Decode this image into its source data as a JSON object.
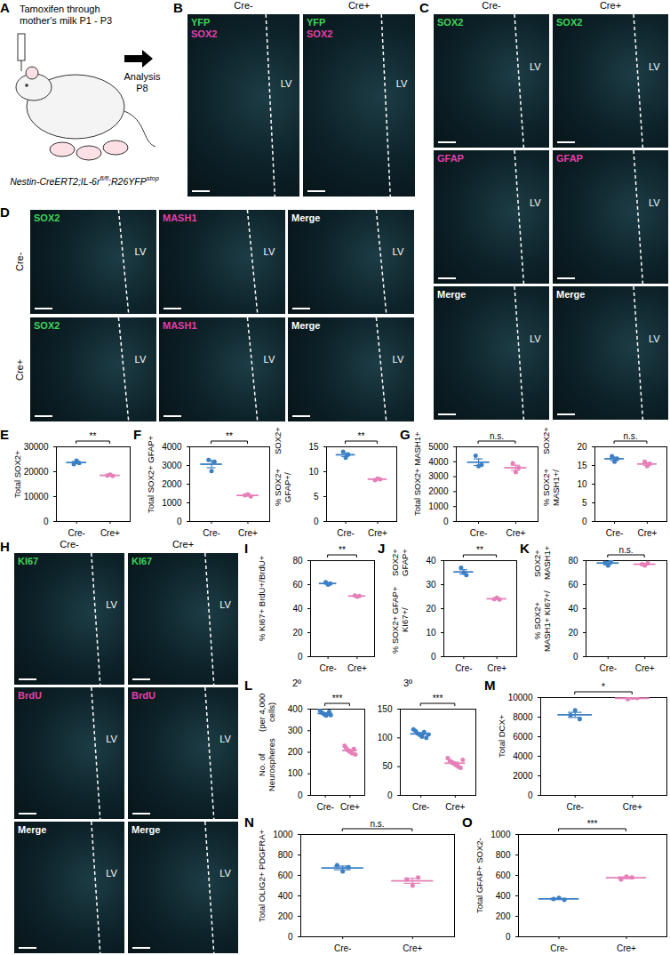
{
  "figure": {
    "panel_A": {
      "label": "A",
      "caption": [
        "Tamoxifen through",
        "mother's milk P1 - P3"
      ],
      "outcome": [
        "Analysis",
        "P8"
      ],
      "genotype": [
        {
          "text": "Nestin-CreERT2;IL-6r"
        },
        {
          "text": "fl/fl",
          "sup": true
        },
        {
          "text": ";R26YFP"
        },
        {
          "text": "stop",
          "sup": true
        }
      ]
    },
    "panel_B": {
      "label": "B",
      "columns": [
        "Cre-",
        "Cre+"
      ],
      "channels": [
        {
          "text": "YFP",
          "color": "#3fd45a"
        },
        {
          "text": "SOX2",
          "color": "#e23fa8"
        }
      ],
      "region": "LV"
    },
    "panel_C": {
      "label": "C",
      "columns": [
        "Cre-",
        "Cre+"
      ],
      "rows": [
        {
          "text": "SOX2",
          "color": "#3fd45a"
        },
        {
          "text": "GFAP",
          "color": "#e23fa8"
        },
        {
          "text": "Merge",
          "color": "#ffffff"
        }
      ],
      "region": "LV"
    },
    "panel_D": {
      "label": "D",
      "rows": [
        "Cre-",
        "Cre+"
      ],
      "columns": [
        {
          "text": "SOX2",
          "color": "#3fd45a"
        },
        {
          "text": "MASH1",
          "color": "#e23fa8"
        },
        {
          "text": "Merge",
          "color": "#ffffff"
        }
      ],
      "region": "LV"
    },
    "panel_H": {
      "label": "H",
      "columns": [
        "Cre-",
        "Cre+"
      ],
      "rows": [
        {
          "text": "KI67",
          "color": "#3fd45a"
        },
        {
          "text": "BrdU",
          "color": "#e23fa8"
        },
        {
          "text": "Merge",
          "color": "#ffffff"
        }
      ],
      "region": "LV"
    }
  },
  "chart_data": [
    {
      "type": "dot",
      "panel_label": "E",
      "ylabel": [
        "Total SOX2+"
      ],
      "categories": [
        "Cre-",
        "Cre+"
      ],
      "colors": [
        "#3b7fc4",
        "#e67fb8"
      ],
      "points": [
        [
          23000,
          24500,
          23500
        ],
        [
          18500,
          18800,
          18300
        ]
      ],
      "means": [
        23700,
        18530
      ],
      "errors": [
        450,
        150
      ],
      "significance": "**",
      "ylim": [
        0,
        30000
      ],
      "yticks": [
        0,
        10000,
        20000,
        30000
      ]
    },
    {
      "type": "dot",
      "panel_label": "F",
      "ylabel": [
        "Total SOX2+ GFAP+"
      ],
      "categories": [
        "Cre-",
        "Cre+"
      ],
      "colors": [
        "#3b7fc4",
        "#e67fb8"
      ],
      "points": [
        [
          3300,
          2700,
          3200
        ],
        [
          1400,
          1450,
          1350
        ]
      ],
      "means": [
        3070,
        1400
      ],
      "errors": [
        190,
        30
      ],
      "significance": "**",
      "ylim": [
        0,
        4000
      ],
      "yticks": [
        0,
        1000,
        2000,
        3000,
        4000
      ]
    },
    {
      "type": "dot",
      "ylabel": [
        "% SOX2+ GFAP+/",
        "SOX2+"
      ],
      "categories": [
        "Cre-",
        "Cre+"
      ],
      "colors": [
        "#3b7fc4",
        "#e67fb8"
      ],
      "points": [
        [
          14,
          12.8,
          13.5
        ],
        [
          8.3,
          8.6,
          8.5
        ]
      ],
      "means": [
        13.4,
        8.5
      ],
      "errors": [
        0.35,
        0.1
      ],
      "significance": "**",
      "ylim": [
        0,
        15
      ],
      "yticks": [
        0,
        5,
        10,
        15
      ]
    },
    {
      "type": "dot",
      "panel_label": "G",
      "ylabel": [
        "Total SOX2+ MASH1+"
      ],
      "categories": [
        "Cre-",
        "Cre+"
      ],
      "colors": [
        "#3b7fc4",
        "#e67fb8"
      ],
      "points": [
        [
          4400,
          3700,
          3800
        ],
        [
          3900,
          3300,
          3600
        ]
      ],
      "means": [
        3970,
        3600
      ],
      "errors": [
        220,
        170
      ],
      "significance": "n.s.",
      "ylim": [
        0,
        5000
      ],
      "yticks": [
        0,
        1000,
        2000,
        3000,
        4000,
        5000
      ]
    },
    {
      "type": "dot",
      "ylabel": [
        "% SOX2+ MASH1+/",
        "SOX2+"
      ],
      "categories": [
        "Cre-",
        "Cre+"
      ],
      "colors": [
        "#3b7fc4",
        "#e67fb8"
      ],
      "points": [
        [
          17.5,
          16,
          16.8
        ],
        [
          16,
          14.8,
          15.5
        ]
      ],
      "means": [
        16.8,
        15.4
      ],
      "errors": [
        0.45,
        0.35
      ],
      "significance": "n.s.",
      "ylim": [
        0,
        20
      ],
      "yticks": [
        0,
        5,
        10,
        15,
        20
      ]
    },
    {
      "type": "dot",
      "panel_label": "I",
      "ylabel": [
        "% KI67+ BrdU+/",
        "BrdU+"
      ],
      "categories": [
        "Cre-",
        "Cre+"
      ],
      "colors": [
        "#3b7fc4",
        "#e67fb8"
      ],
      "points": [
        [
          62,
          60,
          61
        ],
        [
          51,
          50,
          50.5
        ]
      ],
      "means": [
        61,
        50.5
      ],
      "errors": [
        0.6,
        0.3
      ],
      "significance": "**",
      "ylim": [
        0,
        80
      ],
      "yticks": [
        0,
        20,
        40,
        60,
        80
      ]
    },
    {
      "type": "dot",
      "panel_label": "J",
      "ylabel": [
        "% SOX2+ GFAP+ KI67+/",
        "SOX2+ GFAP+"
      ],
      "categories": [
        "Cre-",
        "Cre+"
      ],
      "colors": [
        "#3b7fc4",
        "#e67fb8"
      ],
      "points": [
        [
          37,
          35,
          34
        ],
        [
          24,
          24.5,
          23.8
        ]
      ],
      "means": [
        35.3,
        24.1
      ],
      "errors": [
        0.9,
        0.2
      ],
      "significance": "**",
      "ylim": [
        0,
        40
      ],
      "yticks": [
        0,
        10,
        20,
        30,
        40
      ]
    },
    {
      "type": "dot",
      "panel_label": "K",
      "ylabel": [
        "% SOX2+ MASH1+ KI67+/",
        "SOX2+ MASH1+"
      ],
      "categories": [
        "Cre-",
        "Cre+"
      ],
      "colors": [
        "#3b7fc4",
        "#e67fb8"
      ],
      "points": [
        [
          78,
          76,
          80
        ],
        [
          77,
          76,
          78
        ]
      ],
      "means": [
        78,
        77
      ],
      "errors": [
        1.2,
        0.6
      ],
      "significance": "n.s.",
      "ylim": [
        0,
        80
      ],
      "yticks": [
        0,
        20,
        40,
        60,
        80
      ]
    },
    {
      "type": "dot",
      "panel_label": "L",
      "title": "2º",
      "ylabel": [
        "No. of Neurospheres",
        "(per 4,000 cells)"
      ],
      "categories": [
        "Cre-",
        "Cre+"
      ],
      "colors": [
        "#3b7fc4",
        "#e67fb8"
      ],
      "points": [
        [
          395,
          385,
          380,
          375,
          370,
          378,
          388,
          372
        ],
        [
          230,
          220,
          210,
          205,
          200,
          195,
          215,
          190
        ]
      ],
      "means": [
        380,
        208
      ],
      "errors": [
        3,
        5
      ],
      "significance": "***",
      "ylim": [
        0,
        400
      ],
      "yticks": [
        0,
        100,
        200,
        300,
        400
      ]
    },
    {
      "type": "dot",
      "title": "3º",
      "categories": [
        "Cre-",
        "Cre+"
      ],
      "colors": [
        "#3b7fc4",
        "#e67fb8"
      ],
      "points": [
        [
          115,
          112,
          108,
          105,
          102,
          110,
          100,
          106
        ],
        [
          65,
          60,
          58,
          55,
          52,
          50,
          48,
          62
        ]
      ],
      "means": [
        107,
        56
      ],
      "errors": [
        2,
        2
      ],
      "significance": "***",
      "ylim": [
        0,
        150
      ],
      "yticks": [
        0,
        50,
        100,
        150
      ]
    },
    {
      "type": "dot",
      "panel_label": "M",
      "ylabel": [
        "Total DCX+"
      ],
      "categories": [
        "Cre-",
        "Cre+"
      ],
      "colors": [
        "#3b7fc4",
        "#e67fb8"
      ],
      "points": [
        [
          8200,
          8700,
          7800
        ],
        [
          9850,
          10000,
          9950
        ]
      ],
      "means": [
        8230,
        9930
      ],
      "errors": [
        260,
        40
      ],
      "significance": "*",
      "ylim": [
        0,
        10000
      ],
      "yticks": [
        0,
        2000,
        4000,
        6000,
        8000,
        10000
      ]
    },
    {
      "type": "dot",
      "panel_label": "N",
      "ylabel": [
        "Total OLIG2+ PDGFRA+"
      ],
      "categories": [
        "Cre-",
        "Cre+"
      ],
      "colors": [
        "#3b7fc4",
        "#e67fb8"
      ],
      "points": [
        [
          700,
          640,
          680
        ],
        [
          560,
          500,
          580
        ]
      ],
      "means": [
        673,
        547
      ],
      "errors": [
        18,
        24
      ],
      "significance": "n.s.",
      "ylim": [
        0,
        1000
      ],
      "yticks": [
        0,
        200,
        400,
        600,
        800,
        1000
      ]
    },
    {
      "type": "dot",
      "panel_label": "O",
      "ylabel": [
        "Total GFAP+ SOX2-"
      ],
      "categories": [
        "Cre-",
        "Cre+"
      ],
      "colors": [
        "#3b7fc4",
        "#e67fb8"
      ],
      "points": [
        [
          370,
          380,
          360
        ],
        [
          560,
          590,
          580
        ]
      ],
      "means": [
        370,
        577
      ],
      "errors": [
        6,
        9
      ],
      "significance": "***",
      "ylim": [
        0,
        1000
      ],
      "yticks": [
        0,
        200,
        400,
        600,
        800,
        1000
      ]
    }
  ]
}
